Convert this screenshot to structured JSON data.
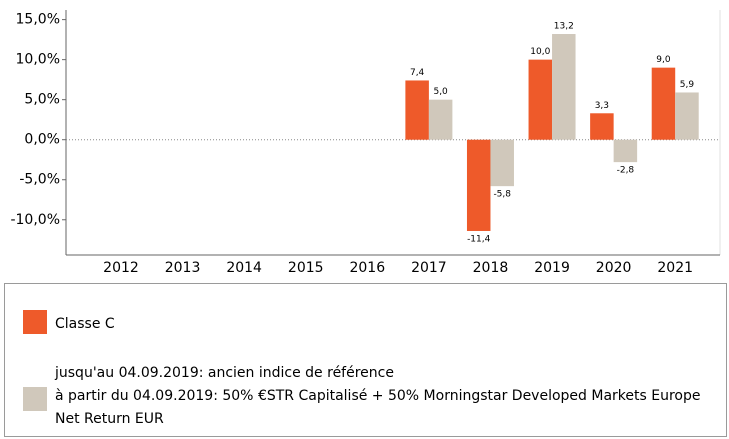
{
  "chart_data": {
    "type": "bar",
    "categories": [
      "2012",
      "2013",
      "2014",
      "2015",
      "2016",
      "2017",
      "2018",
      "2019",
      "2020",
      "2021"
    ],
    "series": [
      {
        "name": "Classe C",
        "color": "#ee5a2a",
        "values": [
          null,
          null,
          null,
          null,
          null,
          7.4,
          -11.4,
          10.0,
          3.3,
          9.0
        ],
        "value_labels": [
          null,
          null,
          null,
          null,
          null,
          "7,4",
          "-11,4",
          "10,0",
          "3,3",
          "9,0"
        ]
      },
      {
        "name": "jusqu'au 04.09.2019: ancien indice de référence\nà partir du 04.09.2019: 50% €STR Capitalisé + 50% Morningstar Developed Markets Europe\nNet Return EUR",
        "color": "#d0c8bb",
        "values": [
          null,
          null,
          null,
          null,
          null,
          5.0,
          -5.8,
          13.2,
          -2.8,
          5.9
        ],
        "value_labels": [
          null,
          null,
          null,
          null,
          null,
          "5,0",
          "-5,8",
          "13,2",
          "-2,8",
          "5,9"
        ]
      }
    ],
    "ylim": [
      -14.4,
      16.2
    ],
    "yticks": [
      {
        "value": -10,
        "label": "-10,0%"
      },
      {
        "value": -5,
        "label": "-5,0%"
      },
      {
        "value": 0,
        "label": "0,0%"
      },
      {
        "value": 5,
        "label": "5,0%"
      },
      {
        "value": 10,
        "label": "10,0%"
      },
      {
        "value": 15,
        "label": "15,0%"
      }
    ]
  }
}
